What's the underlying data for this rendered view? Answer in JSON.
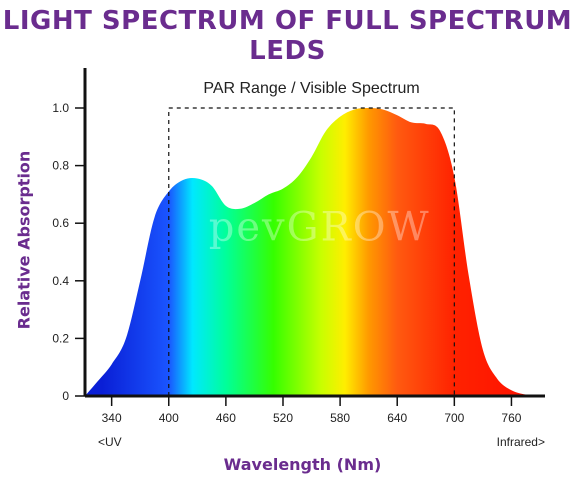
{
  "chart_data": {
    "type": "area",
    "title": "LIGHT SPECTRUM OF FULL SPECTRUM LEDS",
    "xlabel": "Wavelength (Nm)",
    "ylabel": "Relative Absorption",
    "xlim": [
      312,
      790
    ],
    "ylim": [
      0,
      1.1
    ],
    "x_ticks": [
      340,
      400,
      460,
      520,
      580,
      640,
      700,
      760
    ],
    "y_ticks": [
      0,
      0.2,
      0.4,
      0.6,
      0.8,
      1.0
    ],
    "y_tick_labels": [
      "0",
      "0.2",
      "0.4",
      "0.6",
      "0.8",
      "1.0"
    ],
    "x_notes": {
      "left": "<UV",
      "right": "Infrared>"
    },
    "par_range": {
      "label": "PAR Range / Visible Spectrum",
      "x_start": 400,
      "x_end": 700,
      "y_top": 1.0
    },
    "watermark": "pevGROW",
    "series": [
      {
        "x": [
          312,
          325,
          340,
          355,
          370,
          385,
          400,
          415,
          430,
          445,
          460,
          475,
          490,
          505,
          520,
          535,
          550,
          565,
          580,
          595,
          610,
          625,
          640,
          655,
          670,
          685,
          700,
          715,
          730,
          745,
          760,
          775,
          790
        ],
        "values": [
          0.0,
          0.05,
          0.11,
          0.2,
          0.4,
          0.62,
          0.71,
          0.75,
          0.755,
          0.73,
          0.66,
          0.65,
          0.67,
          0.7,
          0.72,
          0.76,
          0.83,
          0.92,
          0.97,
          0.995,
          1.0,
          0.995,
          0.975,
          0.95,
          0.945,
          0.92,
          0.76,
          0.42,
          0.16,
          0.06,
          0.02,
          0.005,
          0.0
        ]
      }
    ],
    "grid": false,
    "colors": {
      "title": "#6a2c8e",
      "axis_labels": "#6a2c8e",
      "axis": "#111111",
      "spectrum": [
        {
          "nm": 330,
          "color": "#0a1fd6"
        },
        {
          "nm": 400,
          "color": "#1a55ff"
        },
        {
          "nm": 425,
          "color": "#00e8ff"
        },
        {
          "nm": 460,
          "color": "#00ff9a"
        },
        {
          "nm": 510,
          "color": "#35ff00"
        },
        {
          "nm": 560,
          "color": "#c8ff00"
        },
        {
          "nm": 585,
          "color": "#ffee00"
        },
        {
          "nm": 610,
          "color": "#ff9900"
        },
        {
          "nm": 640,
          "color": "#ff5a10"
        },
        {
          "nm": 700,
          "color": "#ff2200"
        },
        {
          "nm": 780,
          "color": "#ff1100"
        }
      ]
    }
  }
}
